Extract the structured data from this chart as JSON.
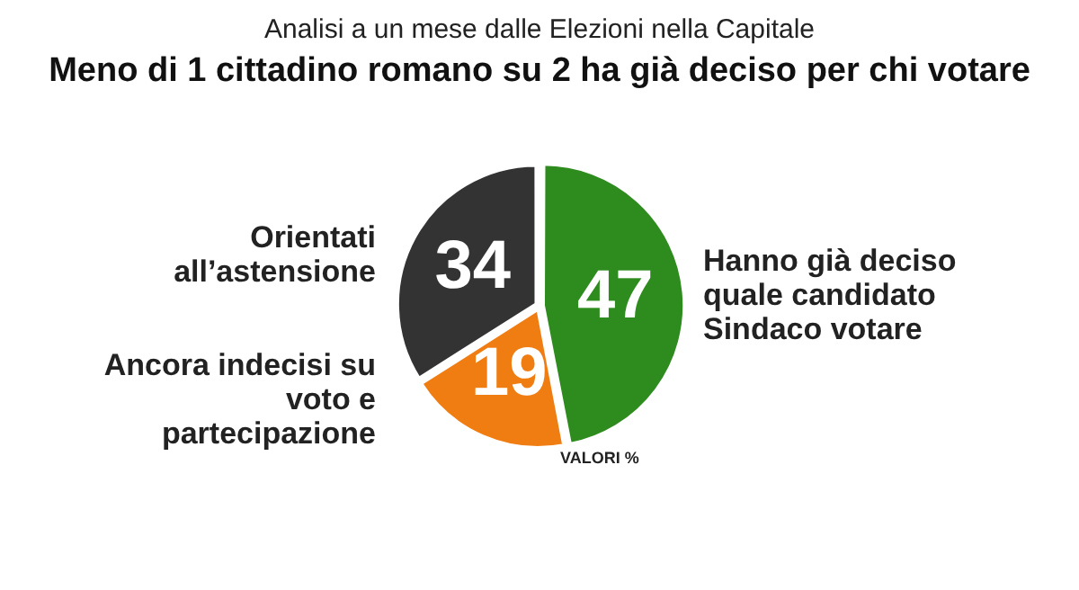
{
  "chart_data": {
    "type": "pie",
    "subtitle": "Analisi a un mese dalle Elezioni nella Capitale",
    "title": "Meno di 1 cittadino romano su 2 ha già deciso per chi votare",
    "categories": [
      "Hanno già deciso quale candidato Sindaco votare",
      "Ancora indecisi su voto e partecipazione",
      "Orientati all’astensione"
    ],
    "values": [
      47,
      19,
      34
    ],
    "colors": [
      "#2e8b1e",
      "#f07d12",
      "#333333"
    ],
    "data_labels": true,
    "legend": false,
    "annotations": [
      "VALORI %"
    ]
  }
}
